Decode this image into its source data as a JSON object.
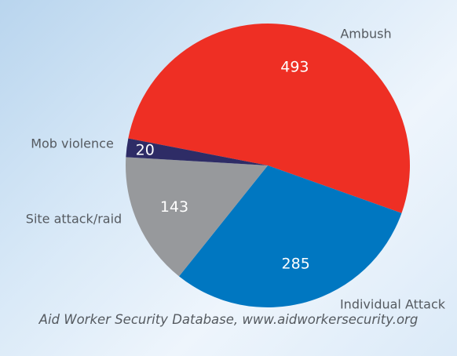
{
  "chart_data": {
    "type": "pie",
    "slices": [
      {
        "label": "Ambush",
        "value": 493,
        "color": "#ee2f24"
      },
      {
        "label": "Individual Attack",
        "value": 285,
        "color": "#0077c1"
      },
      {
        "label": "Site attack/raid",
        "value": 143,
        "color": "#97999c"
      },
      {
        "label": "Mob violence",
        "value": 20,
        "color": "#2e2c66"
      }
    ],
    "legend": "none",
    "value_label_color": "#ffffff"
  },
  "source_note": "Aid Worker Security Database, www.aidworkersecurity.org"
}
